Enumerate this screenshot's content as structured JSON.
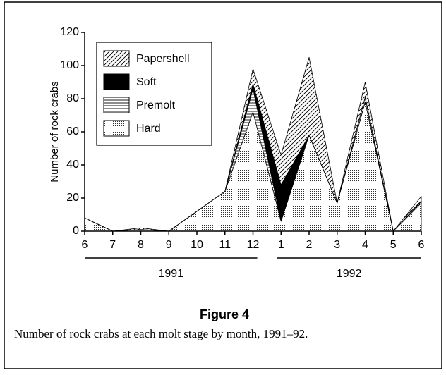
{
  "chart_data": {
    "type": "stacked_area",
    "ylabel": "Number of rock crabs",
    "categories": [
      "6",
      "7",
      "8",
      "9",
      "10",
      "11",
      "12",
      "1",
      "2",
      "3",
      "4",
      "5",
      "6"
    ],
    "series": [
      {
        "name": "Hard",
        "color": "#000000",
        "pattern": "dots",
        "values": [
          8,
          0,
          1,
          0,
          12,
          24,
          72,
          6,
          58,
          17,
          78,
          0,
          17
        ]
      },
      {
        "name": "Premolt",
        "color": "#000000",
        "pattern": "horizontal",
        "values": [
          0,
          0,
          0,
          0,
          0,
          0,
          14,
          0,
          0,
          0,
          3,
          0,
          1
        ]
      },
      {
        "name": "Soft",
        "color": "#000000",
        "pattern": "solid",
        "values": [
          0,
          0,
          0,
          0,
          0,
          0,
          3,
          22,
          0,
          0,
          0,
          0,
          0
        ]
      },
      {
        "name": "Papershell",
        "color": "#000000",
        "pattern": "diagonal",
        "values": [
          0,
          0,
          1,
          0,
          0,
          0,
          9,
          18,
          47,
          0,
          9,
          0,
          3
        ]
      }
    ],
    "ylim": [
      0,
      120
    ],
    "yticks": [
      0,
      20,
      40,
      60,
      80,
      100,
      120
    ],
    "year_labels": [
      "1991",
      "1992"
    ],
    "legend": "upper left",
    "figure_label": "Figure 4",
    "caption": "Number of rock crabs at each molt stage by month, 1991–92."
  }
}
